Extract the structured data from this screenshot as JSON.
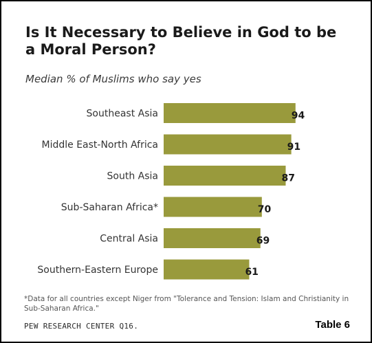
{
  "title": "Is It Necessary to Believe in God to be a Moral Person?",
  "subtitle": "Median % of Muslims who say yes",
  "footnote": "*Data for all countries except Niger from \"Tolerance and Tension: Islam and Christianity in Sub-Saharan Africa.\"",
  "source": "PEW RESEARCH CENTER Q16.",
  "table_label": "Table 6",
  "colors": {
    "bar": "#999a3c",
    "border": "#000000"
  },
  "chart_data": {
    "type": "bar",
    "orientation": "horizontal",
    "title": "Is It Necessary to Believe in God to be a Moral Person?",
    "subtitle": "Median % of Muslims who say yes",
    "categories": [
      "Southeast Asia",
      "Middle East-North Africa",
      "South Asia",
      "Sub-Saharan Africa*",
      "Central Asia",
      "Southern-Eastern Europe"
    ],
    "values": [
      94,
      91,
      87,
      70,
      69,
      61
    ],
    "value_labels": [
      "94",
      "91",
      "87",
      "70",
      "69",
      "61"
    ],
    "xlim": [
      0,
      100
    ],
    "grid": false,
    "legend": "none"
  }
}
